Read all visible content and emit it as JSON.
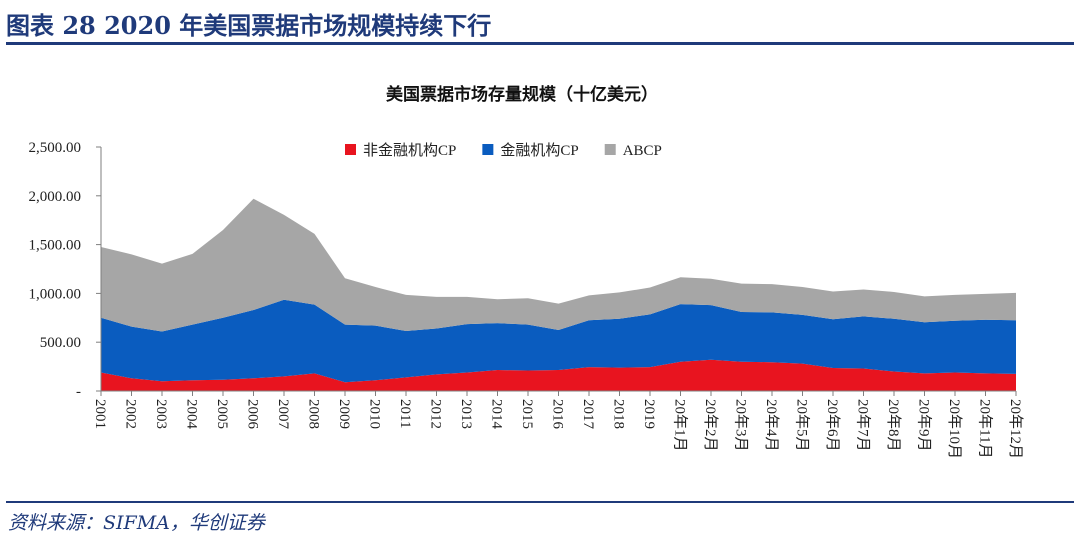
{
  "header": {
    "figure_title": "图表 28   2020 年美国票据市场规模持续下行"
  },
  "source": "资料来源：SIFMA，华创证券",
  "chart_data": {
    "type": "area",
    "stacked": true,
    "title": "美国票据市场存量规模（十亿美元）",
    "categories": [
      "2001",
      "2002",
      "2003",
      "2004",
      "2005",
      "2006",
      "2007",
      "2008",
      "2009",
      "2010",
      "2011",
      "2012",
      "2013",
      "2014",
      "2015",
      "2016",
      "2017",
      "2018",
      "2019",
      "20年1月",
      "20年2月",
      "20年3月",
      "20年4月",
      "20年5月",
      "20年6月",
      "20年7月",
      "20年8月",
      "20年9月",
      "20年10月",
      "20年11月",
      "20年12月"
    ],
    "series": [
      {
        "name": "非金融机构CP",
        "color": "#e8141f",
        "values": [
          190,
          130,
          100,
          110,
          115,
          130,
          150,
          180,
          90,
          110,
          140,
          170,
          190,
          215,
          210,
          215,
          245,
          240,
          245,
          300,
          320,
          300,
          295,
          280,
          235,
          230,
          200,
          180,
          190,
          180,
          175
        ]
      },
      {
        "name": "金融机构CP",
        "color": "#0a5cbf",
        "values": [
          560,
          530,
          510,
          570,
          635,
          700,
          785,
          705,
          590,
          560,
          475,
          470,
          495,
          480,
          470,
          410,
          480,
          500,
          540,
          590,
          560,
          510,
          510,
          500,
          500,
          535,
          540,
          525,
          530,
          550,
          550
        ]
      },
      {
        "name": "ABCP",
        "color": "#a6a6a6",
        "values": [
          725,
          740,
          695,
          725,
          900,
          1140,
          870,
          725,
          475,
          395,
          370,
          325,
          280,
          245,
          270,
          270,
          255,
          270,
          275,
          275,
          270,
          290,
          290,
          285,
          285,
          275,
          275,
          265,
          265,
          265,
          280
        ]
      }
    ],
    "ylim": [
      0,
      2500
    ],
    "yticks": [
      0,
      500,
      1000,
      1500,
      2000,
      2500
    ],
    "ytick_labels": [
      "-",
      "500.00",
      "1,000.00",
      "1,500.00",
      "2,000.00",
      "2,500.00"
    ],
    "legend_position": "top",
    "grid": false,
    "xlabel": "",
    "ylabel": ""
  }
}
